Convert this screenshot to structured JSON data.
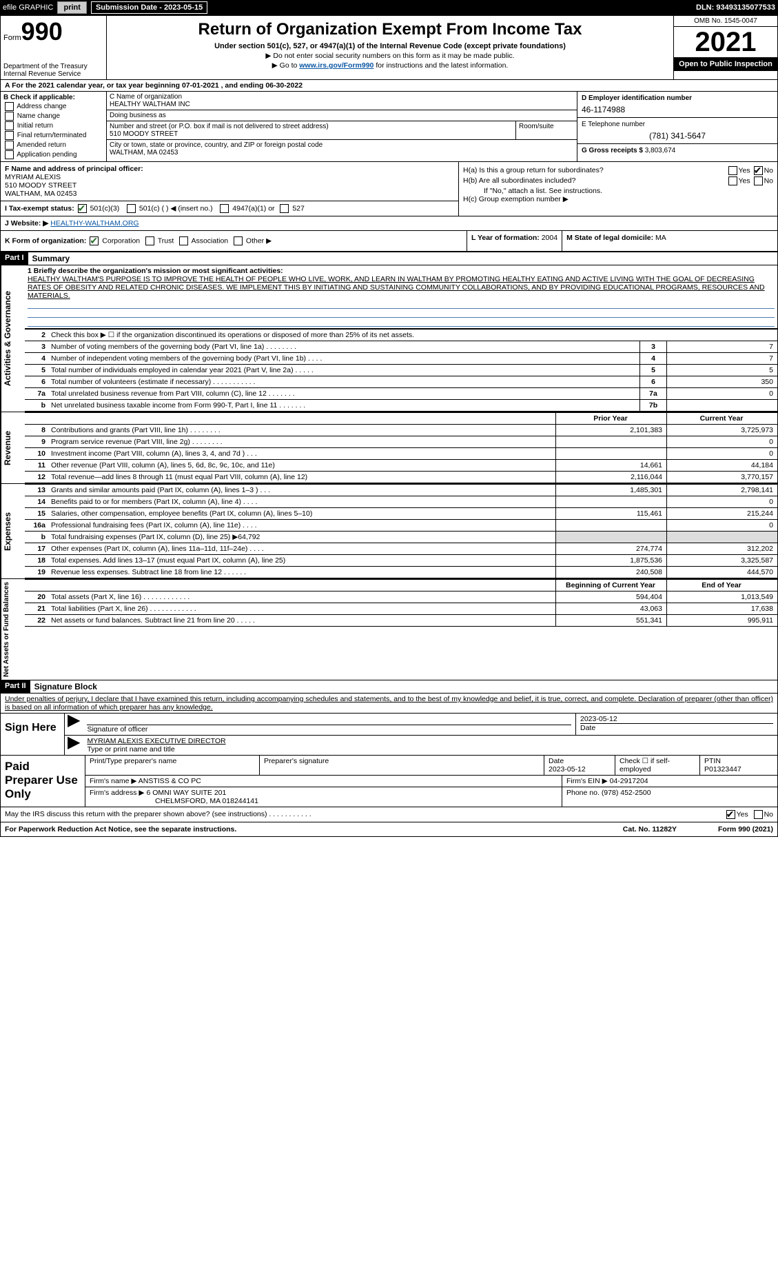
{
  "topbar": {
    "efile": "efile GRAPHIC",
    "print": "print",
    "subdate_label": "Submission Date - 2023-05-15",
    "dln": "DLN: 93493135077533"
  },
  "header": {
    "form_prefix": "Form",
    "form_no": "990",
    "dept": "Department of the Treasury\nInternal Revenue Service",
    "title": "Return of Organization Exempt From Income Tax",
    "subtitle": "Under section 501(c), 527, or 4947(a)(1) of the Internal Revenue Code (except private foundations)",
    "note1": "▶ Do not enter social security numbers on this form as it may be made public.",
    "note2_pre": "▶ Go to ",
    "note2_link": "www.irs.gov/Form990",
    "note2_post": " for instructions and the latest information.",
    "omb": "OMB No. 1545-0047",
    "year": "2021",
    "inspect": "Open to Public Inspection"
  },
  "row_a": "A For the 2021 calendar year, or tax year beginning 07-01-2021    , and ending 06-30-2022",
  "col_b": {
    "label": "B Check if applicable:",
    "items": [
      "Address change",
      "Name change",
      "Initial return",
      "Final return/terminated",
      "Amended return",
      "Application pending"
    ]
  },
  "col_c": {
    "label_name": "C Name of organization",
    "org": "HEALTHY WALTHAM INC",
    "dba_label": "Doing business as",
    "dba": "",
    "street_label": "Number and street (or P.O. box if mail is not delivered to street address)",
    "street": "510 MOODY STREET",
    "room_label": "Room/suite",
    "city_label": "City or town, state or province, country, and ZIP or foreign postal code",
    "city": "WALTHAM, MA  02453"
  },
  "col_d": {
    "d_label": "D Employer identification number",
    "d_val": "46-1174988",
    "e_label": "E Telephone number",
    "e_val": "(781) 341-5647",
    "g_label": "G Gross receipts $",
    "g_val": "3,803,674"
  },
  "f": {
    "label": "F  Name and address of principal officer:",
    "name": "MYRIAM ALEXIS",
    "addr1": "510 MOODY STREET",
    "addr2": "WALTHAM, MA  02453"
  },
  "h": {
    "a_label": "H(a)  Is this a group return for subordinates?",
    "a_yes": "Yes",
    "a_no": "No",
    "b_label": "H(b)  Are all subordinates included?",
    "b_yes": "Yes",
    "b_no": "No",
    "b_note": "If \"No,\" attach a list. See instructions.",
    "c_label": "H(c)  Group exemption number ▶"
  },
  "i": {
    "label": "I   Tax-exempt status:",
    "opts": [
      "501(c)(3)",
      "501(c) (   ) ◀ (insert no.)",
      "4947(a)(1) or",
      "527"
    ]
  },
  "j": {
    "label": "J   Website: ▶",
    "val": "HEALTHY-WALTHAM.ORG"
  },
  "k": {
    "label": "K Form of organization:",
    "opts": [
      "Corporation",
      "Trust",
      "Association",
      "Other ▶"
    ]
  },
  "l": {
    "label": "L Year of formation:",
    "val": "2004"
  },
  "m": {
    "label": "M State of legal domicile:",
    "val": "MA"
  },
  "part1": {
    "tag": "Part I",
    "title": "Summary",
    "line1_label": "1  Briefly describe the organization's mission or most significant activities:",
    "mission": "HEALTHY WALTHAM'S PURPOSE IS TO IMPROVE THE HEALTH OF PEOPLE WHO LIVE, WORK, AND LEARN IN WALTHAM BY PROMOTING HEALTHY EATING AND ACTIVE LIVING WITH THE GOAL OF DECREASING RATES OF OBESITY AND RELATED CHRONIC DISEASES. WE IMPLEMENT THIS BY INITIATING AND SUSTAINING COMMUNITY COLLABORATIONS, AND BY PROVIDING EDUCATIONAL PROGRAMS, RESOURCES AND MATERIALS.",
    "line2": "Check this box ▶ ☐  if the organization discontinued its operations or disposed of more than 25% of its net assets.",
    "govlines": [
      {
        "n": "3",
        "t": "Number of voting members of the governing body (Part VI, line 1a)   .    .    .    .    .    .    .    .",
        "c": "3",
        "v": "7"
      },
      {
        "n": "4",
        "t": "Number of independent voting members of the governing body (Part VI, line 1b)    .    .    .    .",
        "c": "4",
        "v": "7"
      },
      {
        "n": "5",
        "t": "Total number of individuals employed in calendar year 2021 (Part V, line 2a)   .    .    .    .    .",
        "c": "5",
        "v": "5"
      },
      {
        "n": "6",
        "t": "Total number of volunteers (estimate if necessary)    .    .    .    .    .    .    .    .    .    .    .",
        "c": "6",
        "v": "350"
      },
      {
        "n": "7a",
        "t": "Total unrelated business revenue from Part VIII, column (C), line 12   .    .    .    .    .    .    .",
        "c": "7a",
        "v": "0"
      },
      {
        "n": "b",
        "t": "Net unrelated business taxable income from Form 990-T, Part I, line 11   .    .    .    .    .    .    .",
        "c": "7b",
        "v": ""
      }
    ]
  },
  "sides": {
    "gov": "Activities & Governance",
    "rev": "Revenue",
    "exp": "Expenses",
    "net": "Net Assets or Fund Balances"
  },
  "yearhdr": {
    "prior": "Prior Year",
    "current": "Current Year"
  },
  "revenue": [
    {
      "n": "8",
      "t": "Contributions and grants (Part VIII, line 1h)   .    .    .    .    .    .    .    .",
      "p": "2,101,383",
      "c": "3,725,973"
    },
    {
      "n": "9",
      "t": "Program service revenue (Part VIII, line 2g)   .    .    .    .    .    .    .    .",
      "p": "",
      "c": "0"
    },
    {
      "n": "10",
      "t": "Investment income (Part VIII, column (A), lines 3, 4, and 7d )   .    .    .",
      "p": "",
      "c": "0"
    },
    {
      "n": "11",
      "t": "Other revenue (Part VIII, column (A), lines 5, 6d, 8c, 9c, 10c, and 11e)",
      "p": "14,661",
      "c": "44,184"
    },
    {
      "n": "12",
      "t": "Total revenue—add lines 8 through 11 (must equal Part VIII, column (A), line 12)",
      "p": "2,116,044",
      "c": "3,770,157"
    }
  ],
  "expenses": [
    {
      "n": "13",
      "t": "Grants and similar amounts paid (Part IX, column (A), lines 1–3 )   .    .    .",
      "p": "1,485,301",
      "c": "2,798,141"
    },
    {
      "n": "14",
      "t": "Benefits paid to or for members (Part IX, column (A), line 4)   .    .    .    .",
      "p": "",
      "c": "0"
    },
    {
      "n": "15",
      "t": "Salaries, other compensation, employee benefits (Part IX, column (A), lines 5–10)",
      "p": "115,461",
      "c": "215,244"
    },
    {
      "n": "16a",
      "t": "Professional fundraising fees (Part IX, column (A), line 11e)   .    .    .    .",
      "p": "",
      "c": "0"
    },
    {
      "n": "b",
      "t": "Total fundraising expenses (Part IX, column (D), line 25) ▶64,792",
      "p": "--grey--",
      "c": "--grey--"
    },
    {
      "n": "17",
      "t": "Other expenses (Part IX, column (A), lines 11a–11d, 11f–24e)   .    .    .    .",
      "p": "274,774",
      "c": "312,202"
    },
    {
      "n": "18",
      "t": "Total expenses. Add lines 13–17 (must equal Part IX, column (A), line 25)",
      "p": "1,875,536",
      "c": "3,325,587"
    },
    {
      "n": "19",
      "t": "Revenue less expenses. Subtract line 18 from line 12   .    .    .    .    .    .",
      "p": "240,508",
      "c": "444,570"
    }
  ],
  "nethdr": {
    "beg": "Beginning of Current Year",
    "end": "End of Year"
  },
  "net": [
    {
      "n": "20",
      "t": "Total assets (Part X, line 16)   .    .    .    .    .    .    .    .    .    .    .    .",
      "p": "594,404",
      "c": "1,013,549"
    },
    {
      "n": "21",
      "t": "Total liabilities (Part X, line 26)   .    .    .    .    .    .    .    .    .    .    .    .",
      "p": "43,063",
      "c": "17,638"
    },
    {
      "n": "22",
      "t": "Net assets or fund balances. Subtract line 21 from line 20   .    .    .    .    .",
      "p": "551,341",
      "c": "995,911"
    }
  ],
  "part2": {
    "tag": "Part II",
    "title": "Signature Block",
    "decl": "Under penalties of perjury, I declare that I have examined this return, including accompanying schedules and statements, and to the best of my knowledge and belief, it is true, correct, and complete. Declaration of preparer (other than officer) is based on all information of which preparer has any knowledge.",
    "sign_here": "Sign Here",
    "sig_officer": "Signature of officer",
    "sig_date": "2023-05-12",
    "date_label": "Date",
    "officer": "MYRIAM ALEXIS  EXECUTIVE DIRECTOR",
    "type_label": "Type or print name and title",
    "paid": "Paid Preparer Use Only",
    "prep_name_label": "Print/Type preparer's name",
    "prep_sig_label": "Preparer's signature",
    "prep_date_label": "Date",
    "prep_date": "2023-05-12",
    "check_self": "Check ☐ if self-employed",
    "ptin_label": "PTIN",
    "ptin": "P01323447",
    "firm_name_label": "Firm's name    ▶",
    "firm_name": "ANSTISS & CO PC",
    "firm_ein_label": "Firm's EIN ▶",
    "firm_ein": "04-2917204",
    "firm_addr_label": "Firm's address ▶",
    "firm_addr1": "6 OMNI WAY SUITE 201",
    "firm_addr2": "CHELMSFORD, MA  018244141",
    "phone_label": "Phone no.",
    "phone": "(978) 452-2500",
    "discuss": "May the IRS discuss this return with the preparer shown above? (see instructions)   .    .    .    .    .    .    .    .    .    .    .",
    "discuss_yes": "Yes",
    "discuss_no": "No"
  },
  "footer": {
    "pra": "For Paperwork Reduction Act Notice, see the separate instructions.",
    "cat": "Cat. No. 11282Y",
    "form": "Form 990 (2021)"
  }
}
